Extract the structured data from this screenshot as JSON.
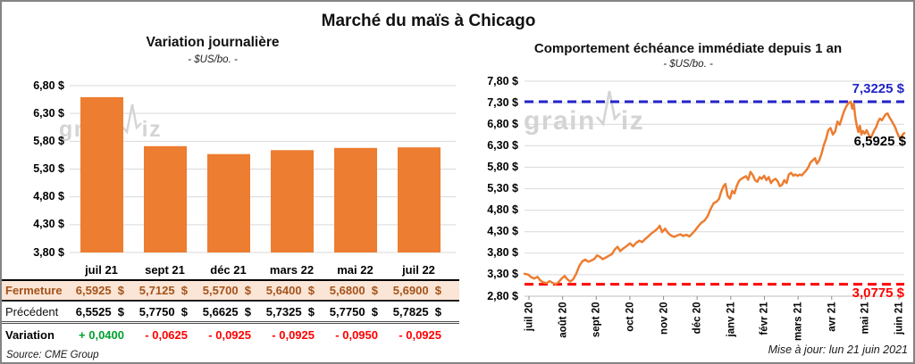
{
  "page": {
    "title": "Marché du maïs à Chicago",
    "source": "Source: CME Group",
    "updated": "Mise à jour: lun 21 juin 2021",
    "watermark_1": "grain",
    "watermark_2": "iz"
  },
  "colors": {
    "orange": "#ED7D31",
    "peach": "#FBE5D6",
    "close_text": "#A4531A",
    "green": "#00A02E",
    "red": "#FF0000",
    "blue": "#2323C9",
    "grid": "#D9D9D9",
    "axis": "#BFBFBF",
    "tick": "#8C8C8C",
    "watermark": "#D4D4D4",
    "border": "#848484"
  },
  "table": {
    "headers": [
      "juil 21",
      "sept 21",
      "déc 21",
      "mars 22",
      "mai 22",
      "juil 22"
    ],
    "rows": [
      {
        "label": "Fermeture",
        "cls": "r-close",
        "values": [
          "6,5925  $",
          "5,7125  $",
          "5,5700  $",
          "5,6400  $",
          "5,6800  $",
          "5,6900  $"
        ]
      },
      {
        "label": "Précédent",
        "cls": "r-prev",
        "values": [
          "6,5525  $",
          "5,7750  $",
          "5,6625  $",
          "5,7325  $",
          "5,7750  $",
          "5,7825  $"
        ]
      },
      {
        "label": "Variation",
        "cls": "r-var",
        "values": [
          "+ 0,0400",
          "- 0,0625",
          "- 0,0925",
          "- 0,0925",
          "- 0,0950",
          "- 0,0925"
        ],
        "value_colors": [
          "#00A02E",
          "#FF0000",
          "#FF0000",
          "#FF0000",
          "#FF0000",
          "#FF0000"
        ]
      }
    ]
  },
  "chart_data": [
    {
      "id": "daily-variation",
      "type": "bar",
      "title": "Variation journalière",
      "subtitle": "- $US/bo. -",
      "categories": [
        "juil 21",
        "sept 21",
        "déc 21",
        "mars 22",
        "mai 22",
        "juil 22"
      ],
      "values": [
        6.5925,
        5.7125,
        5.57,
        5.64,
        5.68,
        5.69
      ],
      "ylim": [
        3.8,
        6.8
      ],
      "ytick_values": [
        6.8,
        6.3,
        5.8,
        5.3,
        4.8,
        4.3,
        3.8
      ],
      "ytick_labels": [
        "6,80 $",
        "6,30 $",
        "5,80 $",
        "5,30 $",
        "4,80 $",
        "4,30 $",
        "3,80 $"
      ],
      "grid": true,
      "legend": "none"
    },
    {
      "id": "front-month-1yr",
      "type": "line",
      "title": "Comportement échéance immédiate depuis 1 an",
      "subtitle": "- $US/bo. -",
      "x_ticks": [
        "juil 20",
        "août 20",
        "sept 20",
        "oct 20",
        "nov 20",
        "déc 20",
        "janv 21",
        "févr 21",
        "mars 21",
        "avr 21",
        "mai 21",
        "juin 21"
      ],
      "ylim": [
        2.8,
        7.8
      ],
      "ytick_values": [
        7.8,
        7.3,
        6.8,
        6.3,
        5.8,
        5.3,
        4.8,
        4.3,
        3.8,
        3.3,
        2.8
      ],
      "ytick_labels": [
        "7,80 $",
        "7,30 $",
        "6,80 $",
        "6,30 $",
        "5,80 $",
        "5,30 $",
        "4,80 $",
        "4,30 $",
        "3,80 $",
        "3,30 $",
        "2,80 $"
      ],
      "grid": true,
      "high_line": {
        "value": 7.3225,
        "label": "7,3225 $"
      },
      "low_line": {
        "value": 3.0775,
        "label": "3,0775 $"
      },
      "last_point": {
        "value": 6.5925,
        "label": "6,5925 $"
      },
      "points": [
        [
          0.0,
          3.32
        ],
        [
          0.01,
          3.3
        ],
        [
          0.018,
          3.24
        ],
        [
          0.026,
          3.21
        ],
        [
          0.034,
          3.25
        ],
        [
          0.042,
          3.16
        ],
        [
          0.05,
          3.12
        ],
        [
          0.058,
          3.1
        ],
        [
          0.066,
          3.15
        ],
        [
          0.074,
          3.11
        ],
        [
          0.082,
          3.08
        ],
        [
          0.09,
          3.13
        ],
        [
          0.098,
          3.21
        ],
        [
          0.106,
          3.27
        ],
        [
          0.112,
          3.2
        ],
        [
          0.12,
          3.14
        ],
        [
          0.128,
          3.19
        ],
        [
          0.136,
          3.32
        ],
        [
          0.144,
          3.5
        ],
        [
          0.152,
          3.61
        ],
        [
          0.16,
          3.65
        ],
        [
          0.168,
          3.6
        ],
        [
          0.176,
          3.63
        ],
        [
          0.184,
          3.67
        ],
        [
          0.191,
          3.75
        ],
        [
          0.198,
          3.72
        ],
        [
          0.206,
          3.66
        ],
        [
          0.214,
          3.7
        ],
        [
          0.222,
          3.74
        ],
        [
          0.23,
          3.78
        ],
        [
          0.238,
          3.89
        ],
        [
          0.245,
          3.95
        ],
        [
          0.252,
          3.85
        ],
        [
          0.26,
          3.91
        ],
        [
          0.268,
          3.96
        ],
        [
          0.278,
          4.03
        ],
        [
          0.286,
          3.96
        ],
        [
          0.294,
          4.04
        ],
        [
          0.302,
          4.09
        ],
        [
          0.31,
          4.06
        ],
        [
          0.318,
          4.13
        ],
        [
          0.326,
          4.19
        ],
        [
          0.334,
          4.26
        ],
        [
          0.342,
          4.31
        ],
        [
          0.35,
          4.37
        ],
        [
          0.356,
          4.44
        ],
        [
          0.362,
          4.29
        ],
        [
          0.37,
          4.37
        ],
        [
          0.378,
          4.27
        ],
        [
          0.386,
          4.21
        ],
        [
          0.394,
          4.18
        ],
        [
          0.402,
          4.21
        ],
        [
          0.41,
          4.24
        ],
        [
          0.418,
          4.2
        ],
        [
          0.426,
          4.23
        ],
        [
          0.434,
          4.19
        ],
        [
          0.442,
          4.26
        ],
        [
          0.45,
          4.34
        ],
        [
          0.458,
          4.43
        ],
        [
          0.466,
          4.51
        ],
        [
          0.474,
          4.56
        ],
        [
          0.482,
          4.66
        ],
        [
          0.49,
          4.83
        ],
        [
          0.498,
          4.96
        ],
        [
          0.506,
          5.0
        ],
        [
          0.512,
          5.06
        ],
        [
          0.518,
          5.23
        ],
        [
          0.524,
          5.36
        ],
        [
          0.529,
          5.41
        ],
        [
          0.535,
          5.13
        ],
        [
          0.541,
          5.07
        ],
        [
          0.547,
          5.25
        ],
        [
          0.553,
          5.19
        ],
        [
          0.559,
          5.37
        ],
        [
          0.565,
          5.48
        ],
        [
          0.571,
          5.53
        ],
        [
          0.577,
          5.56
        ],
        [
          0.583,
          5.59
        ],
        [
          0.589,
          5.51
        ],
        [
          0.595,
          5.69
        ],
        [
          0.601,
          5.62
        ],
        [
          0.607,
          5.5
        ],
        [
          0.613,
          5.46
        ],
        [
          0.619,
          5.57
        ],
        [
          0.625,
          5.53
        ],
        [
          0.631,
          5.6
        ],
        [
          0.637,
          5.5
        ],
        [
          0.643,
          5.57
        ],
        [
          0.649,
          5.43
        ],
        [
          0.655,
          5.5
        ],
        [
          0.661,
          5.53
        ],
        [
          0.667,
          5.47
        ],
        [
          0.672,
          5.36
        ],
        [
          0.678,
          5.39
        ],
        [
          0.684,
          5.5
        ],
        [
          0.69,
          5.43
        ],
        [
          0.696,
          5.63
        ],
        [
          0.702,
          5.67
        ],
        [
          0.708,
          5.6
        ],
        [
          0.713,
          5.63
        ],
        [
          0.719,
          5.6
        ],
        [
          0.725,
          5.63
        ],
        [
          0.73,
          5.61
        ],
        [
          0.736,
          5.67
        ],
        [
          0.742,
          5.73
        ],
        [
          0.748,
          5.81
        ],
        [
          0.753,
          5.91
        ],
        [
          0.759,
          5.96
        ],
        [
          0.765,
          6.01
        ],
        [
          0.77,
          5.88
        ],
        [
          0.776,
          5.96
        ],
        [
          0.782,
          6.11
        ],
        [
          0.788,
          6.31
        ],
        [
          0.794,
          6.46
        ],
        [
          0.8,
          6.66
        ],
        [
          0.806,
          6.71
        ],
        [
          0.812,
          6.56
        ],
        [
          0.818,
          6.63
        ],
        [
          0.824,
          6.86
        ],
        [
          0.83,
          6.79
        ],
        [
          0.835,
          6.93
        ],
        [
          0.841,
          7.09
        ],
        [
          0.847,
          7.21
        ],
        [
          0.853,
          7.29
        ],
        [
          0.859,
          7.3225
        ],
        [
          0.863,
          7.16
        ],
        [
          0.867,
          7.28
        ],
        [
          0.871,
          6.96
        ],
        [
          0.875,
          6.76
        ],
        [
          0.879,
          6.62
        ],
        [
          0.883,
          6.76
        ],
        [
          0.887,
          6.56
        ],
        [
          0.891,
          6.64
        ],
        [
          0.896,
          6.58
        ],
        [
          0.901,
          6.66
        ],
        [
          0.906,
          6.56
        ],
        [
          0.911,
          6.48
        ],
        [
          0.916,
          6.56
        ],
        [
          0.921,
          6.66
        ],
        [
          0.926,
          6.73
        ],
        [
          0.931,
          6.86
        ],
        [
          0.936,
          6.93
        ],
        [
          0.941,
          6.89
        ],
        [
          0.946,
          6.96
        ],
        [
          0.951,
          7.03
        ],
        [
          0.956,
          7.05
        ],
        [
          0.961,
          6.96
        ],
        [
          0.966,
          6.89
        ],
        [
          0.971,
          6.81
        ],
        [
          0.976,
          6.73
        ],
        [
          0.981,
          6.61
        ],
        [
          0.986,
          6.51
        ],
        [
          0.991,
          6.48
        ],
        [
          0.996,
          6.56
        ],
        [
          1.0,
          6.5925
        ]
      ]
    }
  ]
}
